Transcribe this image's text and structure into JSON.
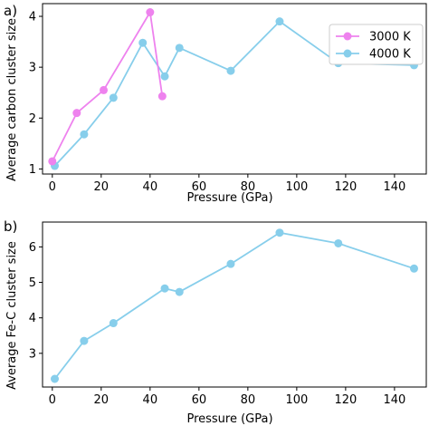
{
  "chart_data": [
    {
      "type": "line",
      "panel_label": "a)",
      "xlabel": "Pressure (GPa)",
      "ylabel": "Average carbon cluster size",
      "xlim": [
        -4,
        153
      ],
      "ylim": [
        0.9,
        4.25
      ],
      "xticks": [
        0,
        20,
        40,
        60,
        80,
        100,
        120,
        140
      ],
      "yticks": [
        1,
        2,
        3,
        4
      ],
      "grid": false,
      "legend_position": "top-right",
      "series": [
        {
          "name": "3000 K",
          "color": "#ee82ee",
          "x": [
            0,
            10,
            21,
            40,
            45
          ],
          "y": [
            1.15,
            2.1,
            2.55,
            4.08,
            2.43
          ]
        },
        {
          "name": "4000 K",
          "color": "#87ceeb",
          "x": [
            1,
            13,
            25,
            37,
            46,
            52,
            73,
            93,
            117,
            148
          ],
          "y": [
            1.06,
            1.68,
            2.4,
            3.48,
            2.82,
            3.38,
            2.93,
            3.9,
            3.08,
            3.04
          ]
        }
      ]
    },
    {
      "type": "line",
      "panel_label": "b)",
      "xlabel": "Pressure (GPa)",
      "ylabel": "Average Fe-C cluster size",
      "xlim": [
        -4,
        153
      ],
      "ylim": [
        2.05,
        6.7
      ],
      "xticks": [
        0,
        20,
        40,
        60,
        80,
        100,
        120,
        140
      ],
      "yticks": [
        3,
        4,
        5,
        6
      ],
      "grid": false,
      "series": [
        {
          "color": "#87ceeb",
          "x": [
            1,
            13,
            25,
            46,
            52,
            73,
            93,
            117,
            148
          ],
          "y": [
            2.28,
            3.35,
            3.85,
            4.83,
            4.73,
            5.52,
            6.4,
            6.1,
            5.39
          ]
        }
      ]
    }
  ]
}
